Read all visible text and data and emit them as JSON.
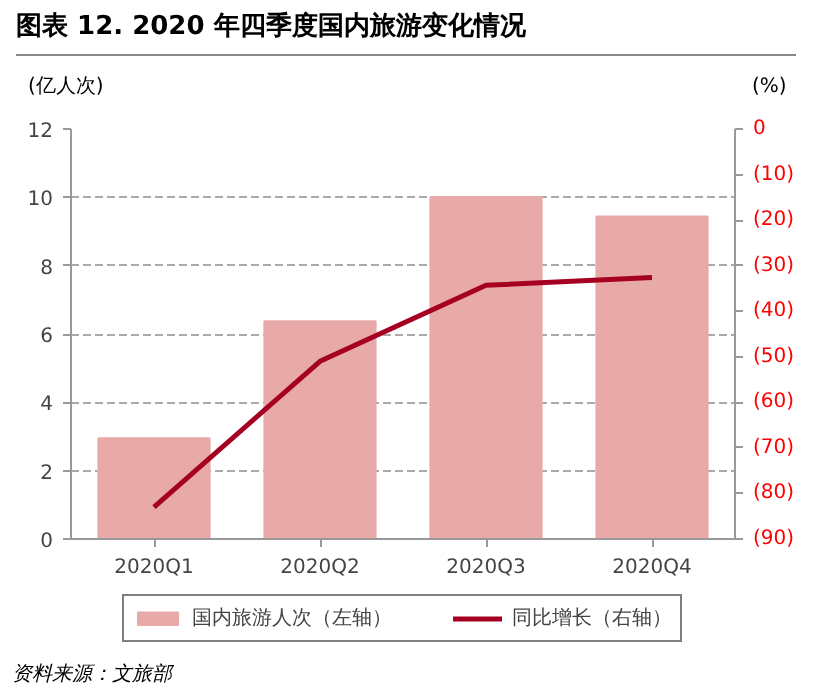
{
  "chart_data": {
    "type": "bar",
    "title": "图表 12. 2020 年四季度国内旅游变化情况",
    "ylabel": "(亿人次)",
    "y2label": "(%)",
    "categories": [
      "2020Q1",
      "2020Q2",
      "2020Q3",
      "2020Q4"
    ],
    "series": [
      {
        "name": "国内旅游人次（左轴）",
        "color": "#e8a9a9",
        "values": [
          2.95,
          6.37,
          10.01,
          9.44
        ]
      },
      {
        "name": "同比增长（右轴）",
        "type": "line",
        "axis": "y2",
        "color": "#a50021",
        "values": [
          -83,
          -51,
          -34.3,
          -32.6
        ]
      }
    ],
    "ylim": [
      0,
      12
    ],
    "yticks": [
      0,
      2,
      4,
      6,
      8,
      10,
      12
    ],
    "y2lim": [
      -90,
      0
    ],
    "y2ticks": [
      0,
      {
        "value": -10,
        "label": "(10)"
      },
      {
        "value": -20,
        "label": "(20)"
      },
      {
        "value": -30,
        "label": "(30)"
      },
      {
        "value": -40,
        "label": "(40)"
      },
      {
        "value": -50,
        "label": "(50)"
      },
      {
        "value": -60,
        "label": "(60)"
      },
      {
        "value": -70,
        "label": "(70)"
      },
      {
        "value": -80,
        "label": "(80)"
      },
      {
        "value": -90,
        "label": "(90)"
      }
    ],
    "grid": "y",
    "legend": "bottom",
    "marker": "none",
    "line_style": "solid",
    "annotations": [
      "资料来源：文旅部"
    ]
  }
}
